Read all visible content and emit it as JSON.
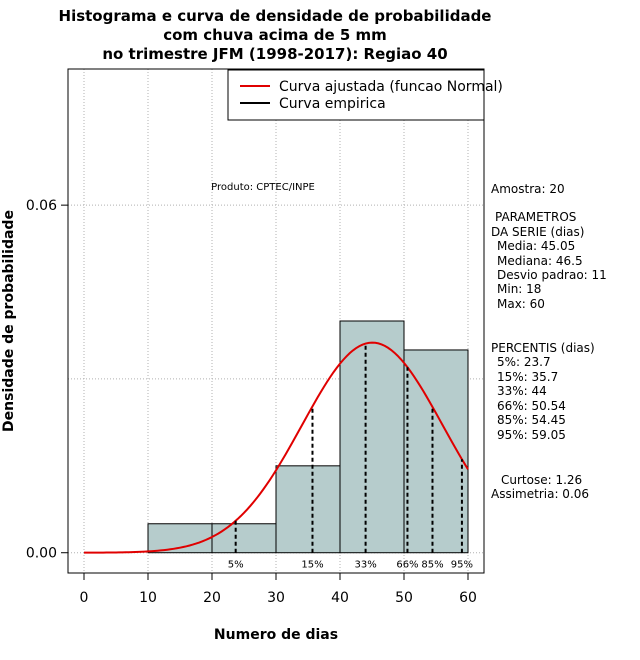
{
  "chart_data": {
    "type": "bar",
    "title": [
      "Histograma e curva de densidade de probabilidade",
      "com chuva acima de 5 mm",
      "no trimestre JFM (1998-2017): Regiao 40"
    ],
    "xlabel": "Numero de dias",
    "ylabel": "Densidade de probabilidade",
    "xlim": [
      -2.5,
      62.5
    ],
    "ylim": [
      -0.0035,
      0.0835
    ],
    "x_ticks": [
      0,
      10,
      20,
      30,
      40,
      50,
      60
    ],
    "y_ticks": [
      0.0,
      0.06
    ],
    "y_tick_labels": [
      "0.00",
      "0.06"
    ],
    "grid": true,
    "legend_position": "top-right",
    "legend": [
      {
        "label": "Curva ajustada (funcao Normal)",
        "color": "#e00000"
      },
      {
        "label": "Curva empirica",
        "color": "#000000"
      }
    ],
    "annotation": "Produto: CPTEC/INPE",
    "bins": [
      {
        "x0": 10,
        "x1": 20,
        "density": 0.005
      },
      {
        "x0": 20,
        "x1": 30,
        "density": 0.005
      },
      {
        "x0": 30,
        "x1": 40,
        "density": 0.015
      },
      {
        "x0": 40,
        "x1": 50,
        "density": 0.04
      },
      {
        "x0": 50,
        "x1": 60,
        "density": 0.035
      }
    ],
    "bar_color": "#b6cccc",
    "normal_fit": {
      "mean": 45.05,
      "sd": 11,
      "color": "#e00000"
    },
    "percentile_lines": [
      {
        "label": "5%",
        "x": 23.7
      },
      {
        "label": "15%",
        "x": 35.7
      },
      {
        "label": "33%",
        "x": 44
      },
      {
        "label": "66%",
        "x": 50.54
      },
      {
        "label": "85%",
        "x": 54.45
      },
      {
        "label": "95%",
        "x": 59.05
      }
    ]
  },
  "stats": {
    "amostra": "Amostra: 20",
    "params_title_1": "PARAMETROS",
    "params_title_2": "DA SERIE (dias)",
    "media": "Media: 45.05",
    "mediana": "Mediana: 46.5",
    "desvio": "Desvio padrao: 11",
    "min": "Min: 18",
    "max": "Max: 60",
    "percentis_title": "PERCENTIS (dias)",
    "p5": "5%: 23.7",
    "p15": "15%: 35.7",
    "p33": "33%: 44",
    "p66": "66%: 50.54",
    "p85": "85%: 54.45",
    "p95": "95%: 59.05",
    "curtose": "Curtose: 1.26",
    "assimetria": "Assimetria: 0.06"
  }
}
